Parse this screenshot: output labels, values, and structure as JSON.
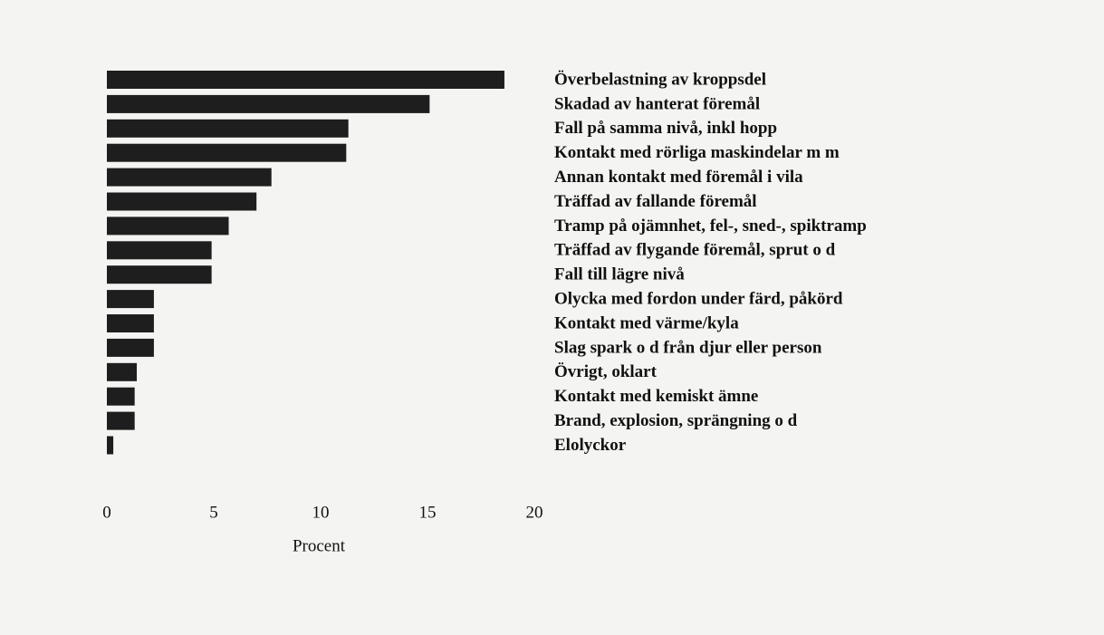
{
  "chart_data": {
    "type": "bar",
    "orientation": "horizontal",
    "categories": [
      "Överbelastning av kroppsdel",
      "Skadad av hanterat föremål",
      "Fall på samma nivå, inkl hopp",
      "Kontakt med rörliga maskindelar m m",
      "Annan kontakt med föremål i vila",
      "Träffad av fallande föremål",
      "Tramp på ojämnhet, fel-, sned-, spiktramp",
      "Träffad av flygande föremål, sprut o d",
      "Fall till lägre nivå",
      "Olycka med fordon under färd, påkörd",
      "Kontakt med värme/kyla",
      "Slag spark o d från djur eller person",
      "Övrigt, oklart",
      "Kontakt med kemiskt ämne",
      "Brand, explosion, sprängning o d",
      "Elolyckor"
    ],
    "values": [
      18.6,
      15.1,
      11.3,
      11.2,
      7.7,
      7.0,
      5.7,
      4.9,
      4.9,
      2.2,
      2.2,
      2.2,
      1.4,
      1.3,
      1.3,
      0.3
    ],
    "color": "#1e1e1e",
    "xlim": [
      0,
      20
    ],
    "xticks": [
      0,
      5,
      10,
      15,
      20
    ],
    "xlabel": "Procent"
  }
}
